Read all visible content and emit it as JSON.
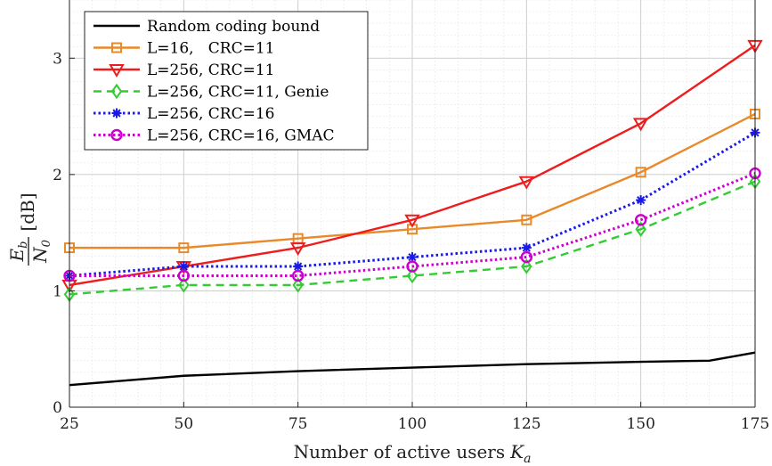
{
  "chart_data": {
    "type": "line",
    "title": "",
    "xlabel": "Number of active users",
    "xlabel_symbol": "K",
    "xlabel_sub": "a",
    "ylabel_num": "E",
    "ylabel_num_sub": "b",
    "ylabel_den": "N",
    "ylabel_den_sub": "0",
    "ylabel_unit": "[dB]",
    "xlim": [
      25,
      175
    ],
    "ylim": [
      0,
      3.5
    ],
    "xticks": [
      25,
      50,
      75,
      100,
      125,
      150,
      175
    ],
    "yticks": [
      0,
      1,
      2,
      3
    ],
    "grid": true,
    "legend_position": "top-left",
    "series": [
      {
        "name": "Random coding bound",
        "color": "#000000",
        "dash": "solid",
        "marker": "none",
        "x": [
          25,
          50,
          75,
          100,
          125,
          150,
          165,
          175
        ],
        "y": [
          0.19,
          0.27,
          0.31,
          0.34,
          0.37,
          0.39,
          0.4,
          0.47
        ]
      },
      {
        "name": "L=16,   CRC=11",
        "color": "#e8892a",
        "dash": "solid",
        "marker": "square",
        "x": [
          25,
          50,
          75,
          100,
          125,
          150,
          175
        ],
        "y": [
          1.37,
          1.37,
          1.45,
          1.53,
          1.61,
          2.02,
          2.52
        ]
      },
      {
        "name": "L=256, CRC=11",
        "color": "#ee1c1c",
        "dash": "solid",
        "marker": "triangle-down",
        "x": [
          25,
          50,
          75,
          100,
          125,
          150,
          175
        ],
        "y": [
          1.05,
          1.21,
          1.37,
          1.61,
          1.94,
          2.44,
          3.11
        ]
      },
      {
        "name": "L=256, CRC=11, Genie",
        "color": "#33cc33",
        "dash": "dashed",
        "marker": "diamond",
        "x": [
          25,
          50,
          75,
          100,
          125,
          150,
          175
        ],
        "y": [
          0.97,
          1.05,
          1.05,
          1.13,
          1.21,
          1.53,
          1.94
        ]
      },
      {
        "name": "L=256, CRC=16",
        "color": "#1a1ae6",
        "dash": "dotted",
        "marker": "asterisk",
        "x": [
          25,
          50,
          75,
          100,
          125,
          150,
          175
        ],
        "y": [
          1.13,
          1.21,
          1.21,
          1.29,
          1.37,
          1.78,
          2.36
        ]
      },
      {
        "name": "L=256, CRC=16, GMAC",
        "color": "#cc00cc",
        "dash": "dotted",
        "marker": "circle",
        "x": [
          25,
          50,
          75,
          100,
          125,
          150,
          175
        ],
        "y": [
          1.13,
          1.13,
          1.13,
          1.21,
          1.29,
          1.61,
          2.01
        ]
      }
    ]
  }
}
